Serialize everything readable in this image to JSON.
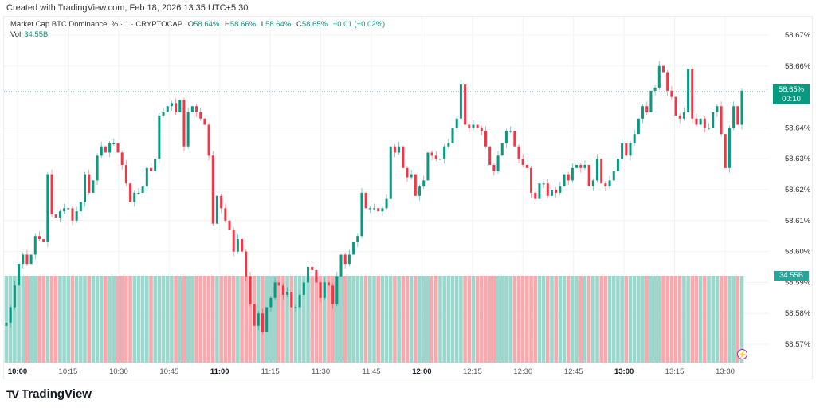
{
  "credit": "Created with TradingView.com, Feb 18, 2026 13:35 UTC+5:30",
  "legend": {
    "symbol": "Market Cap BTC Dominance, % · 1 · CRYPTOCAP",
    "o_label": "O",
    "o": "58.64%",
    "h_label": "H",
    "h": "58.66%",
    "l_label": "L",
    "l": "58.64%",
    "c_label": "C",
    "c": "58.65%",
    "change": "+0.01 (+0.02%)",
    "vol_label": "Vol",
    "vol": "34.55B"
  },
  "price_tag": {
    "price": "58.65%",
    "countdown": "00:10"
  },
  "volume_tag": "34.55B",
  "brand": "TradingView",
  "colors": {
    "up": "#089981",
    "down": "#f23645",
    "vol_up": "#9bd7cd",
    "vol_down": "#f7a9ad"
  },
  "chart_data": {
    "type": "candlestick",
    "interval": "1",
    "y_ticks": [
      "58.67%",
      "58.66%",
      "58.64%",
      "58.63%",
      "58.62%",
      "58.61%",
      "58.60%",
      "58.59%",
      "58.58%",
      "58.57%"
    ],
    "y_tick_values": [
      58.67,
      58.66,
      58.64,
      58.63,
      58.62,
      58.61,
      58.6,
      58.59,
      58.58,
      58.57
    ],
    "ylim": [
      58.565,
      58.675
    ],
    "x_ticks": [
      "10:00",
      "10:15",
      "10:30",
      "10:45",
      "11:00",
      "11:15",
      "11:30",
      "11:45",
      "12:00",
      "12:15",
      "12:30",
      "12:45",
      "13:00",
      "13:15",
      "13:30"
    ],
    "x_ticks_bold": [
      "10:00",
      "11:00",
      "12:00",
      "13:00"
    ],
    "last_price": 58.652,
    "closes": [
      58.577,
      58.582,
      58.589,
      58.596,
      58.599,
      58.596,
      58.599,
      58.605,
      58.604,
      58.603,
      58.625,
      58.612,
      58.611,
      58.613,
      58.614,
      58.614,
      58.61,
      58.613,
      58.616,
      58.625,
      58.619,
      58.623,
      58.631,
      58.634,
      58.632,
      58.635,
      58.635,
      58.632,
      58.628,
      58.622,
      58.616,
      58.619,
      58.619,
      58.621,
      58.627,
      58.626,
      58.63,
      58.644,
      58.645,
      58.647,
      58.648,
      58.645,
      58.649,
      58.634,
      58.645,
      58.647,
      58.645,
      58.643,
      58.641,
      58.631,
      58.609,
      58.618,
      58.614,
      58.61,
      58.607,
      58.6,
      58.604,
      58.6,
      58.592,
      58.583,
      58.576,
      58.58,
      58.574,
      58.582,
      58.585,
      58.59,
      58.589,
      58.586,
      58.587,
      58.582,
      58.582,
      58.586,
      58.59,
      58.595,
      58.594,
      58.59,
      58.585,
      58.59,
      58.589,
      58.583,
      58.592,
      58.599,
      58.596,
      58.599,
      58.603,
      58.605,
      58.619,
      58.614,
      58.614,
      58.614,
      58.613,
      58.614,
      58.617,
      58.634,
      58.632,
      58.634,
      58.627,
      58.624,
      58.625,
      58.618,
      58.621,
      58.623,
      58.632,
      58.631,
      58.63,
      58.63,
      58.634,
      58.635,
      58.64,
      58.643,
      58.654,
      58.641,
      58.64,
      58.641,
      58.64,
      58.639,
      58.634,
      58.628,
      58.626,
      58.631,
      58.635,
      58.639,
      58.639,
      58.634,
      58.63,
      58.628,
      58.627,
      58.619,
      58.617,
      58.622,
      58.622,
      58.618,
      58.62,
      58.619,
      58.621,
      58.625,
      58.623,
      58.627,
      58.628,
      58.627,
      58.628,
      58.621,
      58.623,
      58.63,
      58.622,
      58.621,
      58.623,
      58.626,
      58.63,
      58.635,
      58.631,
      58.635,
      58.638,
      58.643,
      58.647,
      58.645,
      58.652,
      58.653,
      58.66,
      58.658,
      58.652,
      58.65,
      58.644,
      58.643,
      58.645,
      58.659,
      58.643,
      58.641,
      58.643,
      58.64,
      58.64,
      58.645,
      58.647,
      58.638,
      58.627,
      58.64,
      58.647,
      58.641,
      58.652
    ],
    "volume": "34.55B"
  }
}
